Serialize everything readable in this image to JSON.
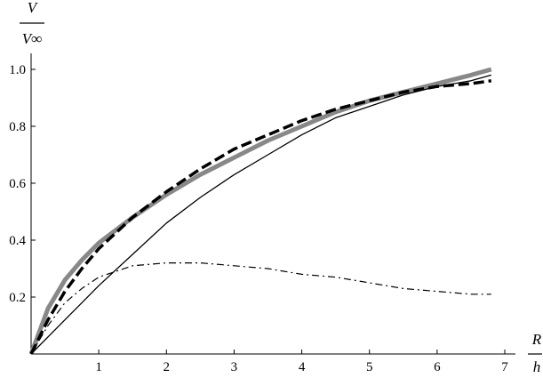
{
  "chart_data": {
    "type": "line",
    "title": "",
    "xlabel": {
      "numerator": "R",
      "denominator": "h"
    },
    "ylabel": {
      "numerator": "V",
      "denominator": "V∞"
    },
    "xlim": [
      0,
      7
    ],
    "ylim": [
      0,
      1.0
    ],
    "x_ticks": [
      {
        "value": 1,
        "label": "1"
      },
      {
        "value": 2,
        "label": "2"
      },
      {
        "value": 3,
        "label": "3"
      },
      {
        "value": 4,
        "label": "4"
      },
      {
        "value": 5,
        "label": "5"
      },
      {
        "value": 6,
        "label": "6"
      },
      {
        "value": 7,
        "label": "7"
      }
    ],
    "y_ticks": [
      {
        "value": 0.2,
        "label": "0.2"
      },
      {
        "value": 0.4,
        "label": "0.4"
      },
      {
        "value": 0.6,
        "label": "0.6"
      },
      {
        "value": 0.8,
        "label": "0.8"
      },
      {
        "value": 1.0,
        "label": "1.0"
      }
    ],
    "grid": false,
    "legend": "none",
    "series": [
      {
        "style": "thick-gray",
        "color": "#888888",
        "x": [
          0,
          0.25,
          0.5,
          0.75,
          1,
          1.5,
          2,
          2.5,
          3,
          3.5,
          4,
          4.5,
          5,
          5.5,
          6,
          6.5,
          6.8
        ],
        "y": [
          0,
          0.16,
          0.26,
          0.33,
          0.39,
          0.48,
          0.56,
          0.63,
          0.69,
          0.75,
          0.8,
          0.85,
          0.89,
          0.92,
          0.95,
          0.98,
          1.0
        ]
      },
      {
        "style": "thick-dashed",
        "color": "#000000",
        "x": [
          0,
          0.25,
          0.5,
          0.75,
          1,
          1.5,
          2,
          2.5,
          3,
          3.5,
          4,
          4.5,
          5,
          5.5,
          6,
          6.5,
          6.8
        ],
        "y": [
          0,
          0.12,
          0.22,
          0.3,
          0.37,
          0.48,
          0.57,
          0.65,
          0.72,
          0.77,
          0.82,
          0.86,
          0.89,
          0.92,
          0.94,
          0.95,
          0.96
        ]
      },
      {
        "style": "thin-solid",
        "color": "#000000",
        "x": [
          0,
          0.25,
          0.5,
          0.75,
          1,
          1.5,
          2,
          2.5,
          3,
          3.5,
          4,
          4.5,
          5,
          5.5,
          6,
          6.5,
          6.8
        ],
        "y": [
          0,
          0.06,
          0.12,
          0.18,
          0.24,
          0.35,
          0.46,
          0.55,
          0.63,
          0.7,
          0.77,
          0.83,
          0.87,
          0.91,
          0.94,
          0.96,
          0.98
        ]
      },
      {
        "style": "thin-dashdot",
        "color": "#000000",
        "x": [
          0,
          0.25,
          0.5,
          0.75,
          1,
          1.25,
          1.5,
          2,
          2.5,
          3,
          3.5,
          4,
          4.5,
          5,
          5.5,
          6,
          6.5,
          6.8
        ],
        "y": [
          0,
          0.1,
          0.18,
          0.23,
          0.27,
          0.29,
          0.31,
          0.32,
          0.32,
          0.31,
          0.3,
          0.28,
          0.27,
          0.25,
          0.23,
          0.22,
          0.21,
          0.21
        ]
      }
    ]
  }
}
